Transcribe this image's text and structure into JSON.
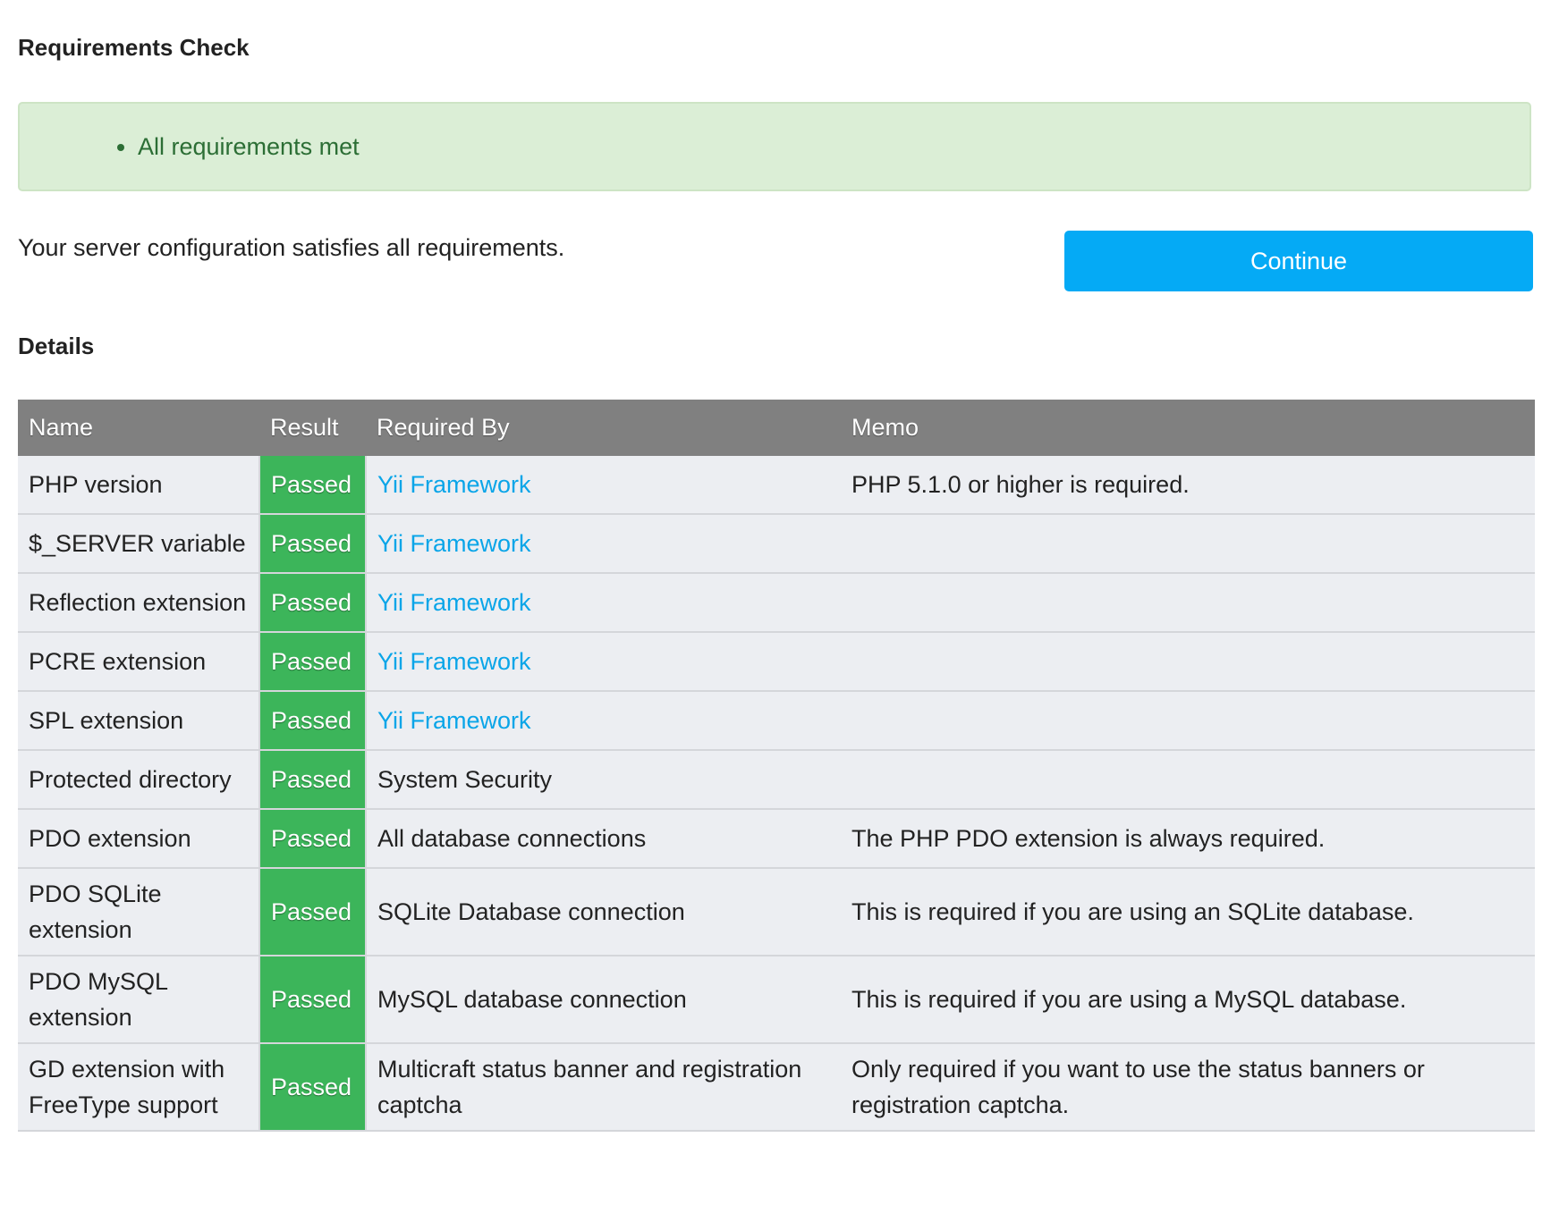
{
  "title": "Requirements Check",
  "alert": {
    "items": [
      "All requirements met"
    ]
  },
  "description": "Your server configuration satisfies all requirements.",
  "continue_label": "Continue",
  "details_title": "Details",
  "table": {
    "headers": [
      "Name",
      "Result",
      "Required By",
      "Memo"
    ],
    "rows": [
      {
        "name": "PHP version",
        "result": "Passed",
        "required_by": "Yii Framework",
        "link": true,
        "memo": "PHP 5.1.0 or higher is required."
      },
      {
        "name": "$_SERVER variable",
        "result": "Passed",
        "required_by": "Yii Framework",
        "link": true,
        "memo": ""
      },
      {
        "name": "Reflection extension",
        "result": "Passed",
        "required_by": "Yii Framework",
        "link": true,
        "memo": ""
      },
      {
        "name": "PCRE extension",
        "result": "Passed",
        "required_by": "Yii Framework",
        "link": true,
        "memo": ""
      },
      {
        "name": "SPL extension",
        "result": "Passed",
        "required_by": "Yii Framework",
        "link": true,
        "memo": ""
      },
      {
        "name": "Protected directory",
        "result": "Passed",
        "required_by": "System Security",
        "link": false,
        "memo": ""
      },
      {
        "name": "PDO extension",
        "result": "Passed",
        "required_by": "All database connections",
        "link": false,
        "memo": "The PHP PDO extension is always required."
      },
      {
        "name": "PDO SQLite extension",
        "result": "Passed",
        "required_by": "SQLite Database connection",
        "link": false,
        "memo": "This is required if you are using an SQLite database."
      },
      {
        "name": "PDO MySQL extension",
        "result": "Passed",
        "required_by": "MySQL database connection",
        "link": false,
        "memo": "This is required if you are using a MySQL database."
      },
      {
        "name": "GD extension with FreeType support",
        "result": "Passed",
        "required_by": "Multicraft status banner and registration captcha",
        "link": false,
        "memo": "Only required if you want to use the status banners or registration captcha."
      }
    ]
  },
  "colors": {
    "passed": "#3cb55a",
    "link": "#0aa5e8",
    "button": "#05aaf5",
    "header": "#808080",
    "alert_bg": "#dbeed6"
  }
}
